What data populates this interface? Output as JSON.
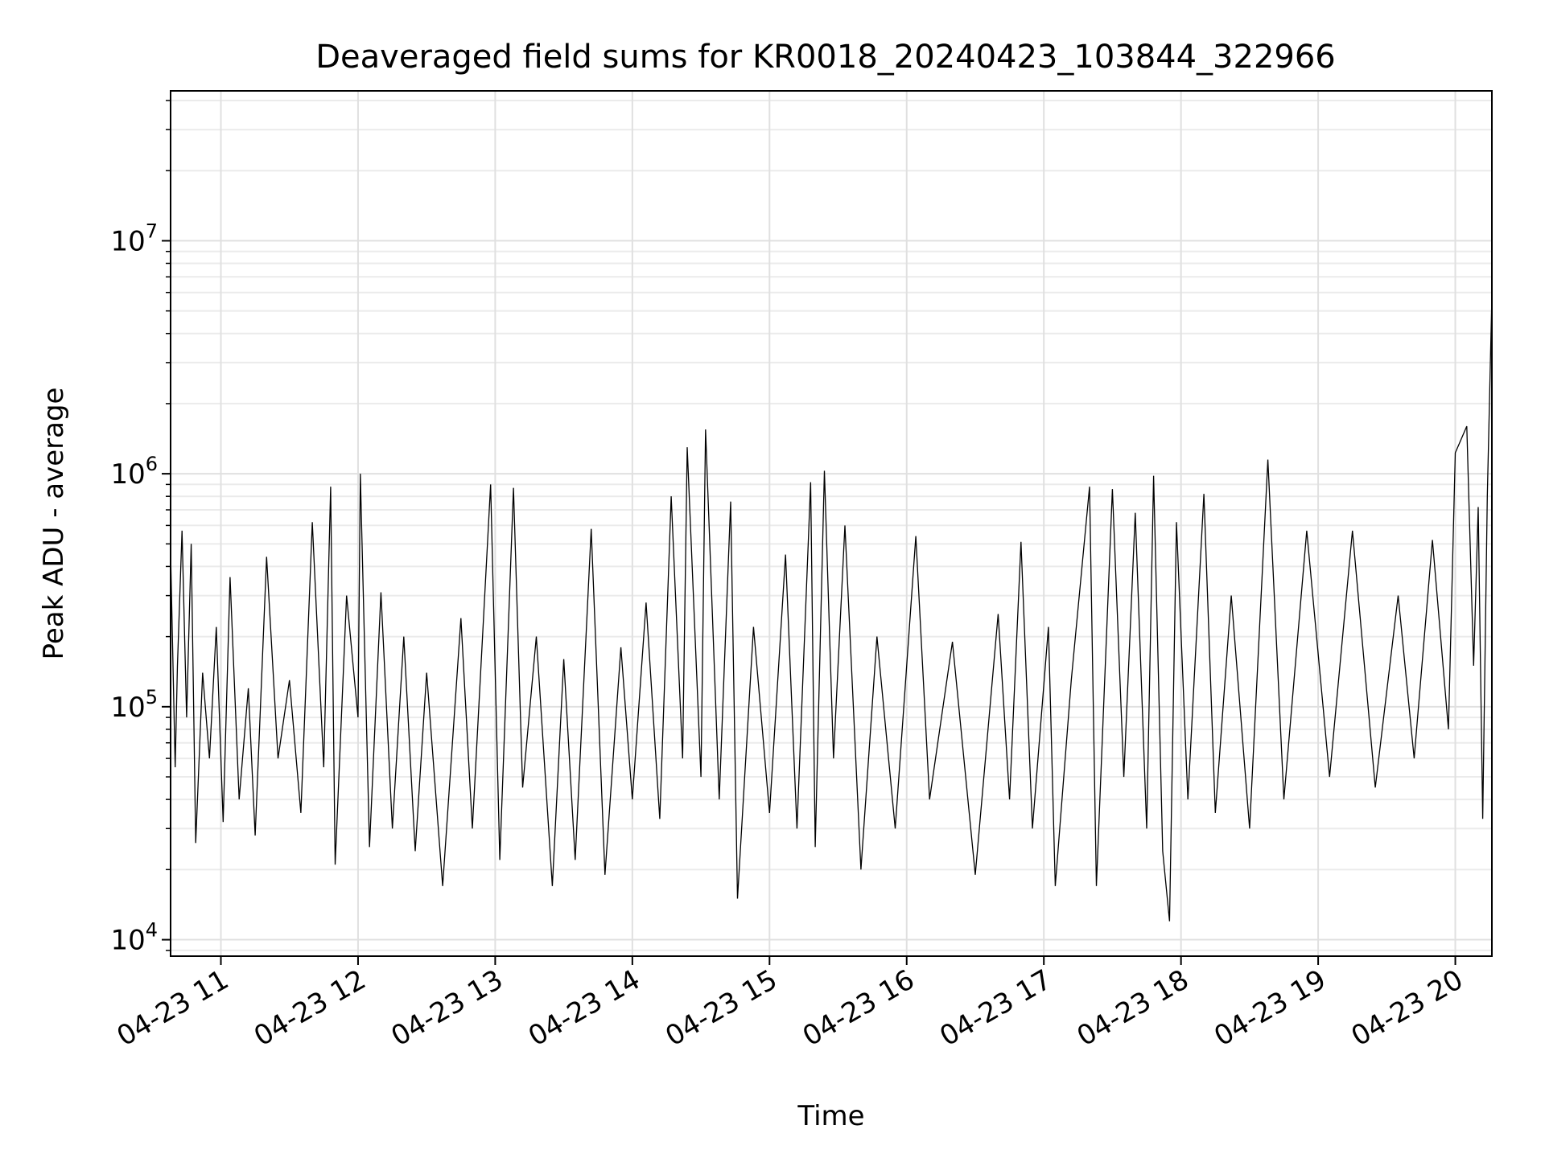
{
  "chart_data": {
    "type": "line",
    "title": "Deaveraged field sums for KR0018_20240423_103844_322966",
    "xlabel": "Time",
    "ylabel": "Peak ADU - average",
    "yscale": "log",
    "ylim": [
      8500,
      44000000
    ],
    "xlim": [
      "2024-04-23 10:38",
      "2024-04-23 20:16"
    ],
    "grid": true,
    "x_ticks": [
      "04-23 11",
      "04-23 12",
      "04-23 13",
      "04-23 14",
      "04-23 15",
      "04-23 16",
      "04-23 17",
      "04-23 18",
      "04-23 19",
      "04-23 20"
    ],
    "y_ticks": [
      {
        "value": 10000,
        "base": "10",
        "exp": "4"
      },
      {
        "value": 100000,
        "base": "10",
        "exp": "5"
      },
      {
        "value": 1000000,
        "base": "10",
        "exp": "6"
      },
      {
        "value": 10000000,
        "base": "10",
        "exp": "7"
      }
    ],
    "series": [
      {
        "color": "#000000",
        "points": [
          [
            "2024-04-23 10:38",
            460000
          ],
          [
            "2024-04-23 10:40",
            55000
          ],
          [
            "2024-04-23 10:41",
            150000
          ],
          [
            "2024-04-23 10:43",
            570000
          ],
          [
            "2024-04-23 10:45",
            90000
          ],
          [
            "2024-04-23 10:47",
            500000
          ],
          [
            "2024-04-23 10:49",
            26000
          ],
          [
            "2024-04-23 10:52",
            140000
          ],
          [
            "2024-04-23 10:55",
            60000
          ],
          [
            "2024-04-23 10:58",
            220000
          ],
          [
            "2024-04-23 11:01",
            32000
          ],
          [
            "2024-04-23 11:04",
            360000
          ],
          [
            "2024-04-23 11:08",
            40000
          ],
          [
            "2024-04-23 11:12",
            120000
          ],
          [
            "2024-04-23 11:15",
            28000
          ],
          [
            "2024-04-23 11:20",
            440000
          ],
          [
            "2024-04-23 11:25",
            60000
          ],
          [
            "2024-04-23 11:30",
            130000
          ],
          [
            "2024-04-23 11:35",
            35000
          ],
          [
            "2024-04-23 11:40",
            620000
          ],
          [
            "2024-04-23 11:45",
            55000
          ],
          [
            "2024-04-23 11:48",
            880000
          ],
          [
            "2024-04-23 11:50",
            21000
          ],
          [
            "2024-04-23 11:55",
            300000
          ],
          [
            "2024-04-23 12:00",
            90000
          ],
          [
            "2024-04-23 12:01",
            1000000
          ],
          [
            "2024-04-23 12:05",
            25000
          ],
          [
            "2024-04-23 12:10",
            310000
          ],
          [
            "2024-04-23 12:15",
            30000
          ],
          [
            "2024-04-23 12:20",
            200000
          ],
          [
            "2024-04-23 12:25",
            24000
          ],
          [
            "2024-04-23 12:30",
            140000
          ],
          [
            "2024-04-23 12:37",
            17000
          ],
          [
            "2024-04-23 12:45",
            240000
          ],
          [
            "2024-04-23 12:50",
            30000
          ],
          [
            "2024-04-23 12:58",
            900000
          ],
          [
            "2024-04-23 13:02",
            22000
          ],
          [
            "2024-04-23 13:08",
            870000
          ],
          [
            "2024-04-23 13:12",
            45000
          ],
          [
            "2024-04-23 13:18",
            200000
          ],
          [
            "2024-04-23 13:25",
            17000
          ],
          [
            "2024-04-23 13:30",
            160000
          ],
          [
            "2024-04-23 13:35",
            22000
          ],
          [
            "2024-04-23 13:42",
            580000
          ],
          [
            "2024-04-23 13:48",
            19000
          ],
          [
            "2024-04-23 13:55",
            180000
          ],
          [
            "2024-04-23 14:00",
            40000
          ],
          [
            "2024-04-23 14:06",
            280000
          ],
          [
            "2024-04-23 14:12",
            33000
          ],
          [
            "2024-04-23 14:17",
            800000
          ],
          [
            "2024-04-23 14:22",
            60000
          ],
          [
            "2024-04-23 14:24",
            1300000
          ],
          [
            "2024-04-23 14:30",
            50000
          ],
          [
            "2024-04-23 14:32",
            1550000
          ],
          [
            "2024-04-23 14:38",
            40000
          ],
          [
            "2024-04-23 14:43",
            760000
          ],
          [
            "2024-04-23 14:46",
            15000
          ],
          [
            "2024-04-23 14:53",
            220000
          ],
          [
            "2024-04-23 15:00",
            35000
          ],
          [
            "2024-04-23 15:07",
            450000
          ],
          [
            "2024-04-23 15:12",
            30000
          ],
          [
            "2024-04-23 15:18",
            920000
          ],
          [
            "2024-04-23 15:20",
            25000
          ],
          [
            "2024-04-23 15:24",
            1030000
          ],
          [
            "2024-04-23 15:28",
            60000
          ],
          [
            "2024-04-23 15:33",
            600000
          ],
          [
            "2024-04-23 15:40",
            20000
          ],
          [
            "2024-04-23 15:47",
            200000
          ],
          [
            "2024-04-23 15:55",
            30000
          ],
          [
            "2024-04-23 16:04",
            540000
          ],
          [
            "2024-04-23 16:10",
            40000
          ],
          [
            "2024-04-23 16:20",
            190000
          ],
          [
            "2024-04-23 16:30",
            19000
          ],
          [
            "2024-04-23 16:40",
            250000
          ],
          [
            "2024-04-23 16:45",
            40000
          ],
          [
            "2024-04-23 16:50",
            510000
          ],
          [
            "2024-04-23 16:55",
            30000
          ],
          [
            "2024-04-23 17:02",
            220000
          ],
          [
            "2024-04-23 17:05",
            17000
          ],
          [
            "2024-04-23 17:12",
            130000
          ],
          [
            "2024-04-23 17:20",
            880000
          ],
          [
            "2024-04-23 17:23",
            17000
          ],
          [
            "2024-04-23 17:30",
            860000
          ],
          [
            "2024-04-23 17:35",
            50000
          ],
          [
            "2024-04-23 17:40",
            680000
          ],
          [
            "2024-04-23 17:45",
            30000
          ],
          [
            "2024-04-23 17:48",
            980000
          ],
          [
            "2024-04-23 17:52",
            24000
          ],
          [
            "2024-04-23 17:55",
            12000
          ],
          [
            "2024-04-23 17:58",
            620000
          ],
          [
            "2024-04-23 18:03",
            40000
          ],
          [
            "2024-04-23 18:10",
            820000
          ],
          [
            "2024-04-23 18:15",
            35000
          ],
          [
            "2024-04-23 18:22",
            300000
          ],
          [
            "2024-04-23 18:30",
            30000
          ],
          [
            "2024-04-23 18:38",
            1150000
          ],
          [
            "2024-04-23 18:45",
            40000
          ],
          [
            "2024-04-23 18:55",
            570000
          ],
          [
            "2024-04-23 19:05",
            50000
          ],
          [
            "2024-04-23 19:15",
            570000
          ],
          [
            "2024-04-23 19:25",
            45000
          ],
          [
            "2024-04-23 19:35",
            300000
          ],
          [
            "2024-04-23 19:42",
            60000
          ],
          [
            "2024-04-23 19:50",
            520000
          ],
          [
            "2024-04-23 19:57",
            80000
          ],
          [
            "2024-04-23 20:00",
            1230000
          ],
          [
            "2024-04-23 20:05",
            1600000
          ],
          [
            "2024-04-23 20:08",
            150000
          ],
          [
            "2024-04-23 20:10",
            720000
          ],
          [
            "2024-04-23 20:12",
            33000
          ],
          [
            "2024-04-23 20:14",
            800000
          ],
          [
            "2024-04-23 20:16",
            5800000
          ]
        ]
      }
    ]
  }
}
